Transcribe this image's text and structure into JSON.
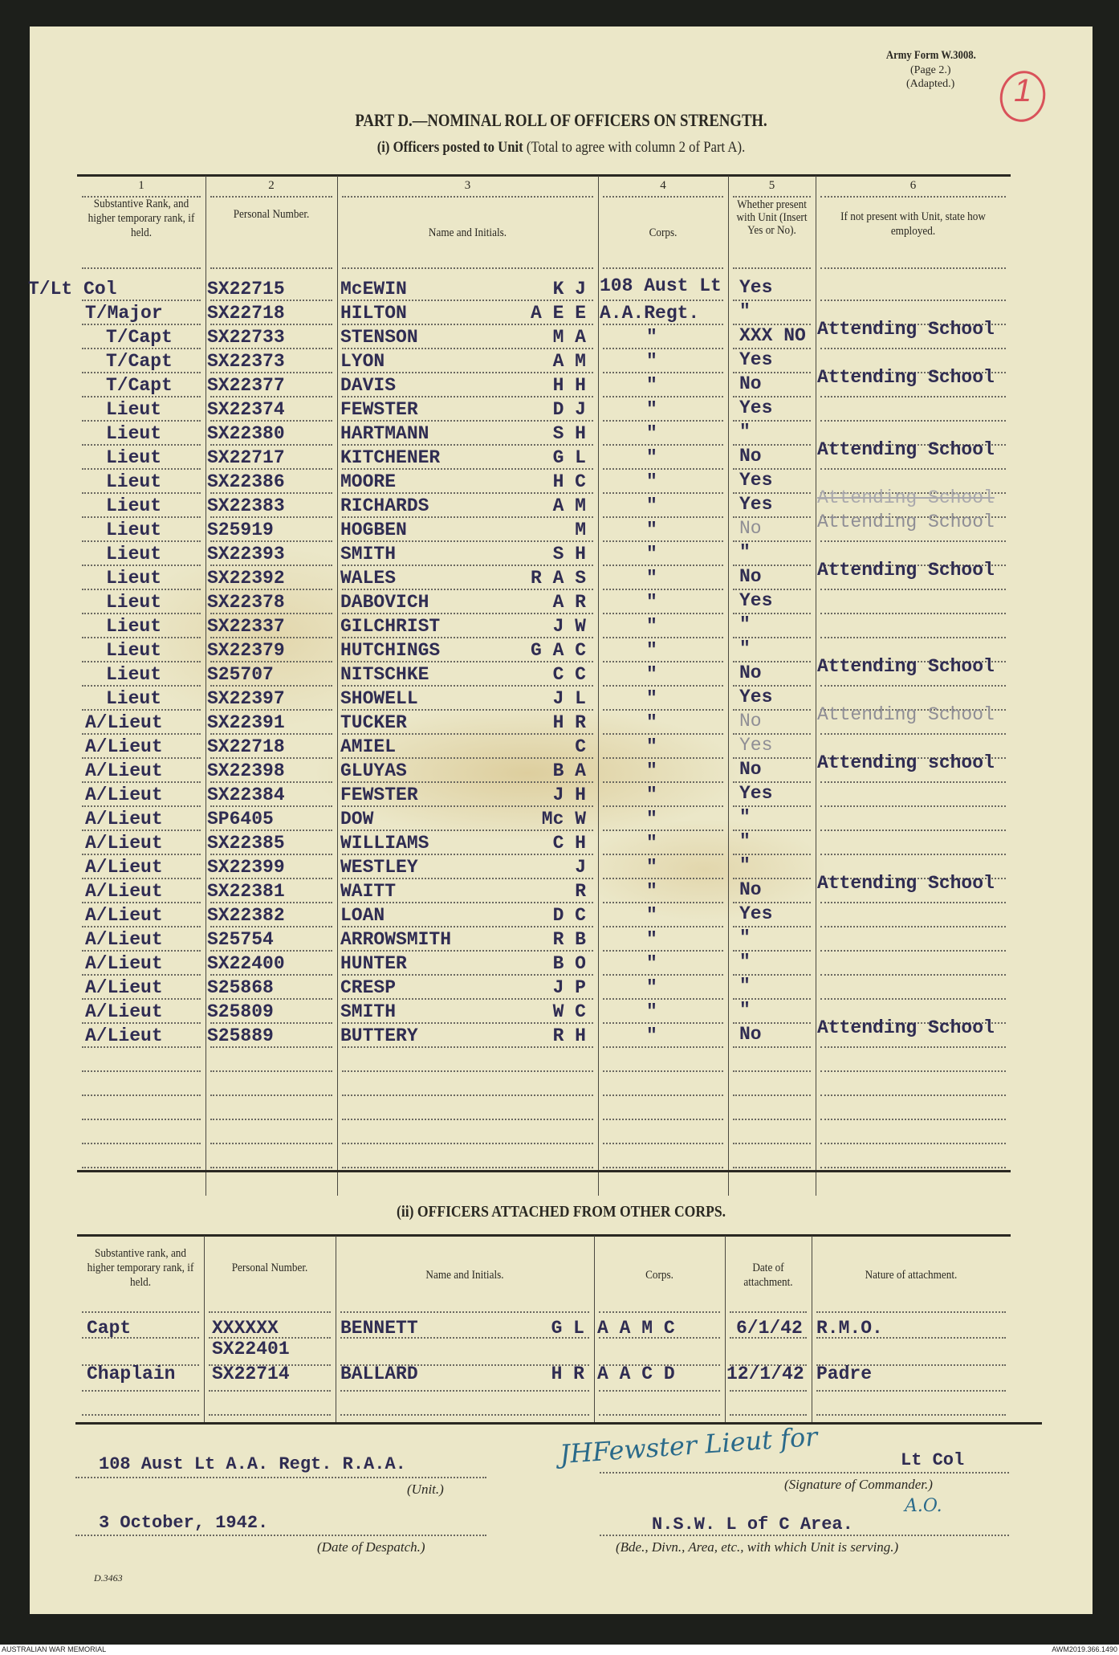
{
  "form": {
    "number": "Army Form W.3008.",
    "page": "(Page 2.)",
    "adapted": "(Adapted.)",
    "folio_mark": "1",
    "print_code": "D.3463"
  },
  "title": "PART D.—NOMINAL ROLL OF OFFICERS ON STRENGTH.",
  "subtitle_bold": "(i) Officers posted to Unit",
  "subtitle_rest": "(Total to agree with column 2 of Part A).",
  "part_i": {
    "column_numbers": [
      "1",
      "2",
      "3",
      "4",
      "5",
      "6"
    ],
    "headers": [
      "Substantive Rank, and higher temporary rank, if held.",
      "Personal Number.",
      "Name and Initials.",
      "Corps.",
      "Whether present with Unit (Insert Yes or No).",
      "If not present with Unit, state how employed."
    ],
    "rows": [
      {
        "rank": "T/Lt Col",
        "number": "SX22715",
        "name": "McEWIN",
        "initials": "K J",
        "corps": "108 Aust Lt",
        "present": "Yes",
        "employed": ""
      },
      {
        "rank": "T/Major",
        "number": "SX22718",
        "name": "HILTON",
        "initials": "A E E",
        "corps": "A.A.Regt.",
        "present": "\"",
        "employed": ""
      },
      {
        "rank": "T/Capt",
        "number": "SX22733",
        "name": "STENSON",
        "initials": "M A",
        "corps": "\"",
        "present": "XXX NO",
        "employed": "Attending School"
      },
      {
        "rank": "T/Capt",
        "number": "SX22373",
        "name": "LYON",
        "initials": "A M",
        "corps": "\"",
        "present": "Yes",
        "employed": ""
      },
      {
        "rank": "T/Capt",
        "number": "SX22377",
        "name": "DAVIS",
        "initials": "H H",
        "corps": "\"",
        "present": "No",
        "employed": "Attending School"
      },
      {
        "rank": "Lieut",
        "number": "SX22374",
        "name": "FEWSTER",
        "initials": "D J",
        "corps": "\"",
        "present": "Yes",
        "employed": ""
      },
      {
        "rank": "Lieut",
        "number": "SX22380",
        "name": "HARTMANN",
        "initials": "S H",
        "corps": "\"",
        "present": "\"",
        "employed": ""
      },
      {
        "rank": "Lieut",
        "number": "SX22717",
        "name": "KITCHENER",
        "initials": "G L",
        "corps": "\"",
        "present": "No",
        "employed": "Attending School"
      },
      {
        "rank": "Lieut",
        "number": "SX22386",
        "name": "MOORE",
        "initials": "H C",
        "corps": "\"",
        "present": "Yes",
        "employed": ""
      },
      {
        "rank": "Lieut",
        "number": "SX22383",
        "name": "RICHARDS",
        "initials": "A M",
        "corps": "\"",
        "present": "Yes",
        "employed": "Attending School",
        "ink": "struck"
      },
      {
        "rank": "Lieut",
        "number": "S25919",
        "name": "HOGBEN",
        "initials": "M",
        "corps": "\"",
        "present": "No",
        "employed": "Attending School",
        "ink": "faint"
      },
      {
        "rank": "Lieut",
        "number": "SX22393",
        "name": "SMITH",
        "initials": "S H",
        "corps": "\"",
        "present": "\"",
        "employed": ""
      },
      {
        "rank": "Lieut",
        "number": "SX22392",
        "name": "WALES",
        "initials": "R A S",
        "corps": "\"",
        "present": "No",
        "employed": "Attending School"
      },
      {
        "rank": "Lieut",
        "number": "SX22378",
        "name": "DABOVICH",
        "initials": "A R",
        "corps": "\"",
        "present": "Yes",
        "employed": ""
      },
      {
        "rank": "Lieut",
        "number": "SX22337",
        "name": "GILCHRIST",
        "initials": "J W",
        "corps": "\"",
        "present": "\"",
        "employed": ""
      },
      {
        "rank": "Lieut",
        "number": "SX22379",
        "name": "HUTCHINGS",
        "initials": "G A C",
        "corps": "\"",
        "present": "\"",
        "employed": ""
      },
      {
        "rank": "Lieut",
        "number": "S25707",
        "name": "NITSCHKE",
        "initials": "C C",
        "corps": "\"",
        "present": "No",
        "employed": "Attending School"
      },
      {
        "rank": "Lieut",
        "number": "SX22397",
        "name": "SHOWELL",
        "initials": "J L",
        "corps": "\"",
        "present": "Yes",
        "employed": ""
      },
      {
        "rank": "A/Lieut",
        "number": "SX22391",
        "name": "TUCKER",
        "initials": "H R",
        "corps": "\"",
        "present": "No",
        "employed": "Attending School",
        "ink": "faint"
      },
      {
        "rank": "A/Lieut",
        "number": "SX22718",
        "name": "AMIEL",
        "initials": "C",
        "corps": "\"",
        "present": "Yes",
        "employed": "",
        "ink": "faint"
      },
      {
        "rank": "A/Lieut",
        "number": "SX22398",
        "name": "GLUYAS",
        "initials": "B A",
        "corps": "\"",
        "present": "No",
        "employed": "Attending school"
      },
      {
        "rank": "A/Lieut",
        "number": "SX22384",
        "name": "FEWSTER",
        "initials": "J H",
        "corps": "\"",
        "present": "Yes",
        "employed": ""
      },
      {
        "rank": "A/Lieut",
        "number": "SP6405",
        "name": "DOW",
        "initials": "Mc W",
        "corps": "\"",
        "present": "\"",
        "employed": ""
      },
      {
        "rank": "A/Lieut",
        "number": "SX22385",
        "name": "WILLIAMS",
        "initials": "C H",
        "corps": "\"",
        "present": "\"",
        "employed": ""
      },
      {
        "rank": "A/Lieut",
        "number": "SX22399",
        "name": "WESTLEY",
        "initials": "J",
        "corps": "\"",
        "present": "\"",
        "employed": ""
      },
      {
        "rank": "A/Lieut",
        "number": "SX22381",
        "name": "WAITT",
        "initials": "R",
        "corps": "\"",
        "present": "No",
        "employed": "Attending School"
      },
      {
        "rank": "A/Lieut",
        "number": "SX22382",
        "name": "LOAN",
        "initials": "D C",
        "corps": "\"",
        "present": "Yes",
        "employed": ""
      },
      {
        "rank": "A/Lieut",
        "number": "S25754",
        "name": "ARROWSMITH",
        "initials": "R B",
        "corps": "\"",
        "present": "\"",
        "employed": ""
      },
      {
        "rank": "A/Lieut",
        "number": "SX22400",
        "name": "HUNTER",
        "initials": "B O",
        "corps": "\"",
        "present": "\"",
        "employed": ""
      },
      {
        "rank": "A/Lieut",
        "number": "S25868",
        "name": "CRESP",
        "initials": "J P",
        "corps": "\"",
        "present": "\"",
        "employed": ""
      },
      {
        "rank": "A/Lieut",
        "number": "S25809",
        "name": "SMITH",
        "initials": "W C",
        "corps": "\"",
        "present": "\"",
        "employed": ""
      },
      {
        "rank": "A/Lieut",
        "number": "S25889",
        "name": "BUTTERY",
        "initials": "R H",
        "corps": "\"",
        "present": "No",
        "employed": "Attending School"
      }
    ]
  },
  "part_ii": {
    "title": "(ii) OFFICERS ATTACHED FROM OTHER CORPS.",
    "headers": [
      "Substantive rank, and higher temporary rank, if held.",
      "Personal Number.",
      "Name and Initials.",
      "Corps.",
      "Date of attachment.",
      "Nature of attachment."
    ],
    "rows": [
      {
        "rank": "Capt",
        "number": "XXXXXX",
        "number2": "SX22401",
        "name": "BENNETT",
        "initials": "G L",
        "corps": "A A M C",
        "date": "6/1/42",
        "nature": "R.M.O."
      },
      {
        "rank": "Chaplain",
        "number": "SX22714",
        "number2": "",
        "name": "BALLARD",
        "initials": "H R",
        "corps": "A A C D",
        "date": "12/1/42",
        "nature": "Padre"
      }
    ]
  },
  "footer": {
    "unit": "108 Aust Lt A.A. Regt. R.A.A.",
    "unit_caption": "(Unit.)",
    "date": "3 October, 1942.",
    "date_caption": "(Date of Despatch.)",
    "signature": "JHFewster Lieut for",
    "signature_rank": "Lt Col",
    "signature_caption": "(Signature of Commander.)",
    "annotation": "A.O.",
    "area": "N.S.W. L of C Area.",
    "area_caption": "(Bde., Divn., Area, etc., with which Unit is serving.)"
  },
  "credits": {
    "left": "AUSTRALIAN WAR MEMORIAL",
    "right": "AWM2019.366.1490"
  },
  "colors": {
    "paper": "#ebe7c8",
    "typed_ink": "#2f2c52",
    "signature_ink": "#2a6a8a",
    "folio_ring": "#d9525a"
  }
}
